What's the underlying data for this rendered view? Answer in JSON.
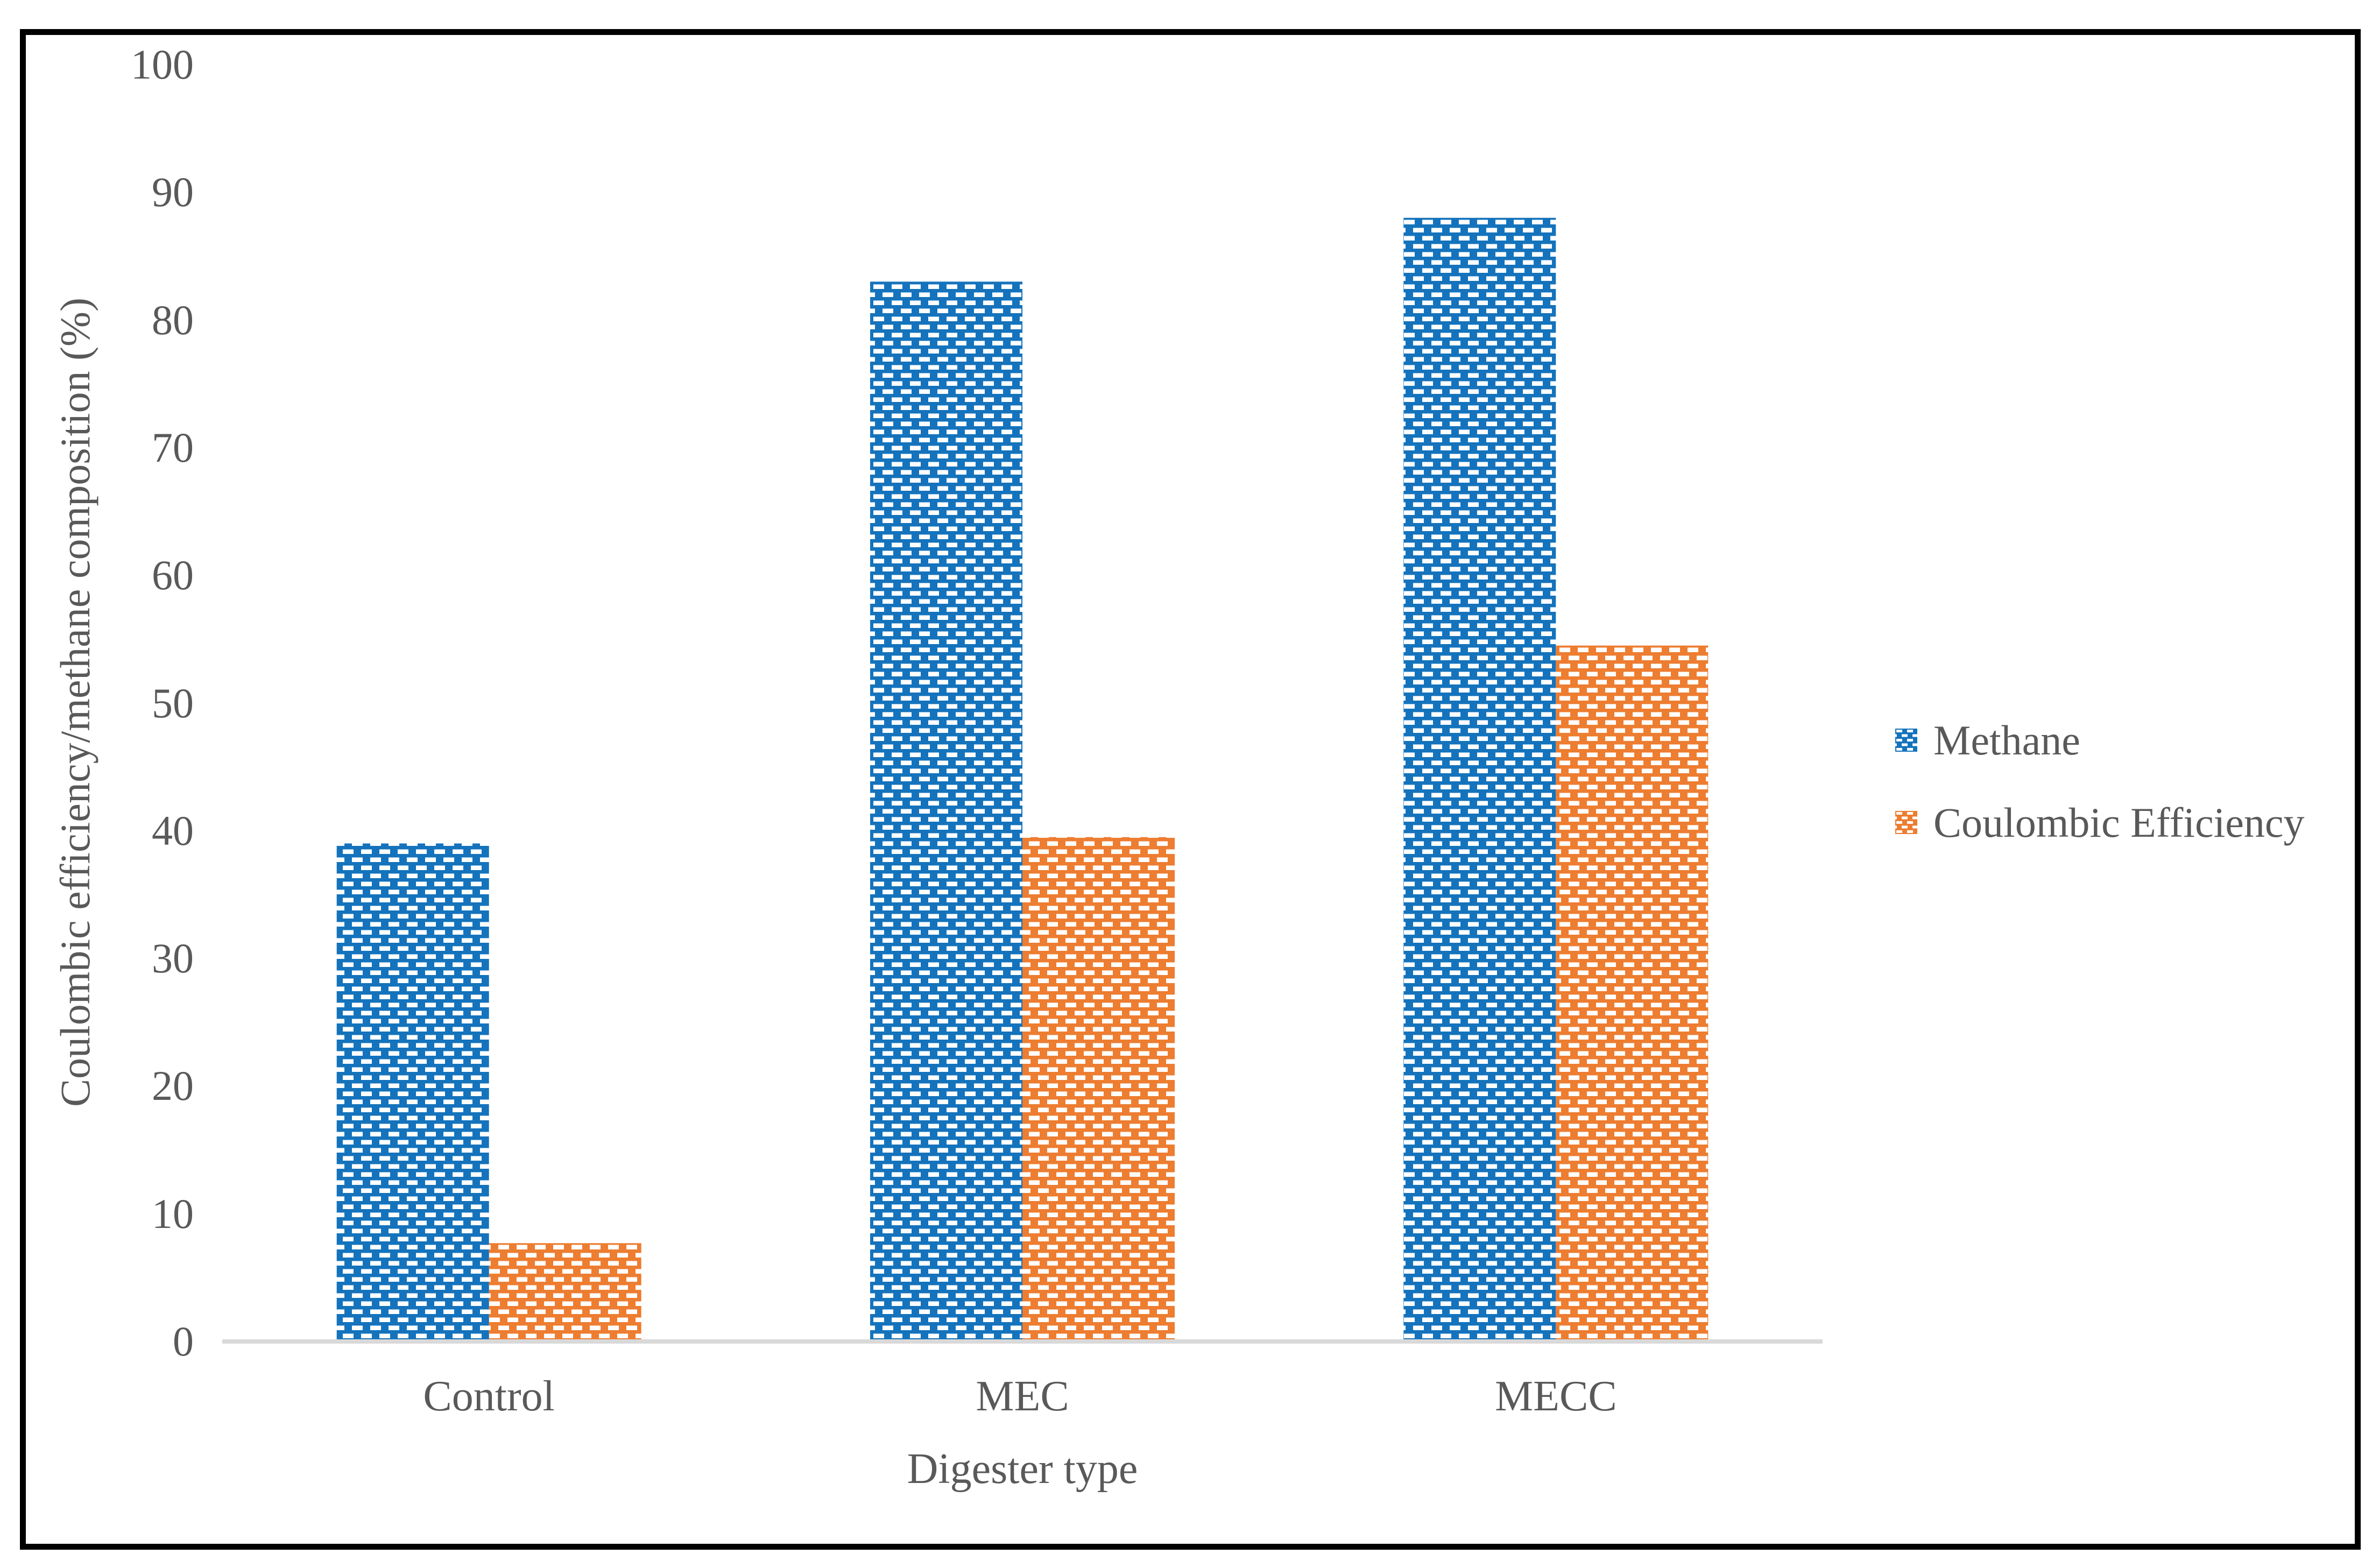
{
  "figure": {
    "frame_color": "#000000",
    "background": "#ffffff",
    "axis_text_color": "#595959",
    "axis_line_color": "#D9D9D9",
    "pattern_foreground": "#ffffff",
    "pattern_style": "white horizontal dashes (brick pattern)"
  },
  "chart_data": {
    "type": "bar",
    "title": "",
    "categories": [
      "Control",
      "MEC",
      "MECC"
    ],
    "series": [
      {
        "name": "Methane",
        "color": "#1473BC",
        "values": [
          39,
          83,
          88
        ]
      },
      {
        "name": "Coulombic Efficiency",
        "color": "#ED7D31",
        "values": [
          7.7,
          39.5,
          54.5
        ]
      }
    ],
    "xlabel": "Digester type",
    "ylabel": "Coulombic efficiency/methane composition (%)",
    "ylim": [
      0,
      100
    ],
    "ytick_step": 10,
    "yticks": [
      0,
      10,
      20,
      30,
      40,
      50,
      60,
      70,
      80,
      90,
      100
    ],
    "grid": false,
    "legend_position": "right"
  }
}
